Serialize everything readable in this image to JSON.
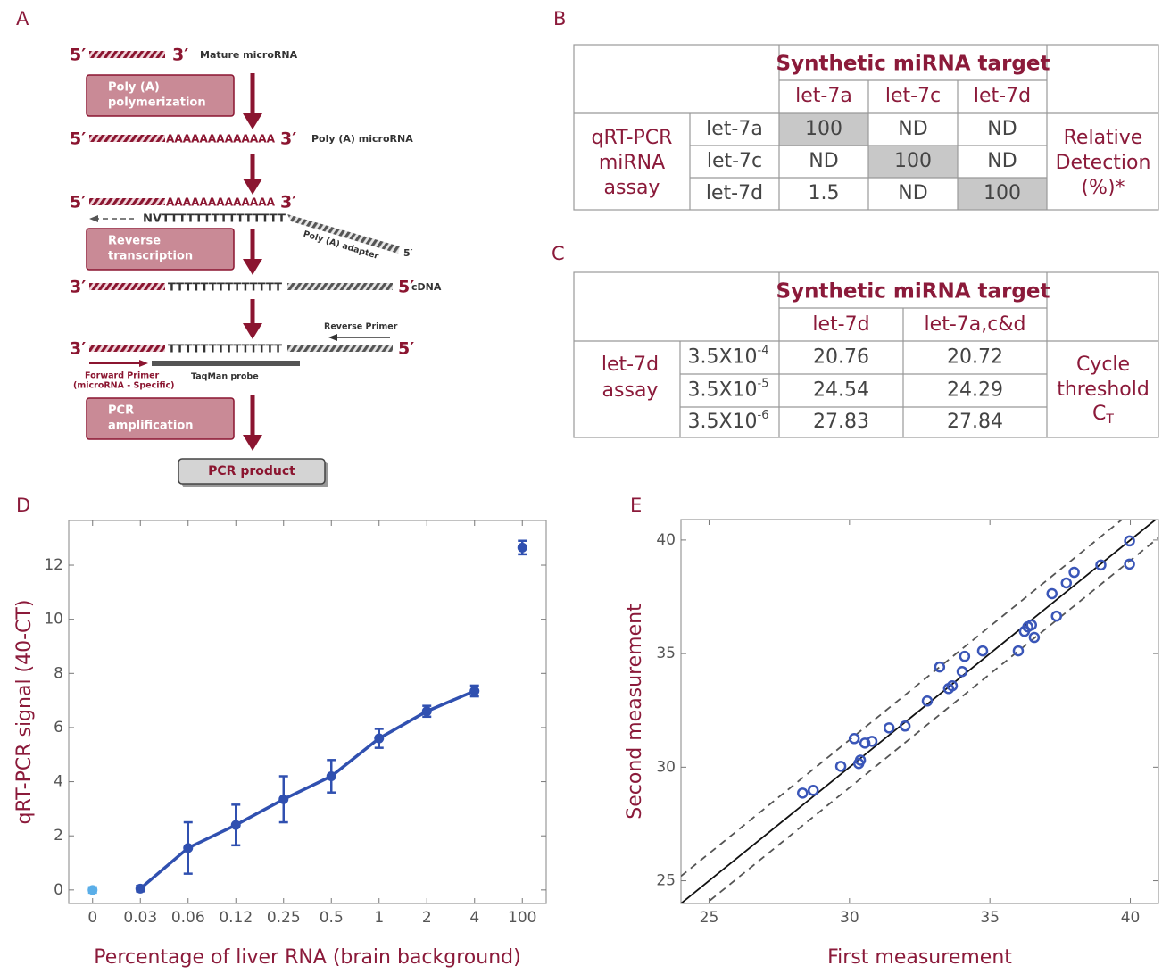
{
  "panel_labels": [
    "A",
    "B",
    "C",
    "D",
    "E"
  ],
  "diagram": {
    "labels": [
      "5′",
      "3′",
      "Mature microRNA",
      "5′",
      "AAAAAAAAAAAAA",
      "3′",
      "Poly (A) microRNA",
      "5′",
      "AAAAAAAAAAAAA",
      "3′",
      "NVTTTTTTTTTTTTTTT",
      "Poly (A) adapter",
      "5′",
      "3′",
      "TTTTTTTTTTTTTT",
      "5′",
      "cDNA",
      "Reverse Primer",
      "3′",
      "TTTTTTTTTTTTTT",
      "5′",
      "Forward Primer",
      "(microRNA - Specific)",
      "TaqMan probe"
    ],
    "boxes": [
      [
        "Poly (A)",
        "polymerization"
      ],
      [
        "Reverse",
        "transcription"
      ],
      [
        "PCR",
        "amplification"
      ]
    ],
    "product": "PCR product"
  },
  "table_b": {
    "header": "Synthetic miRNA target",
    "columns": [
      "let-7a",
      "let-7c",
      "let-7d"
    ],
    "row_group": [
      "qRT-PCR",
      "miRNA",
      "assay"
    ],
    "rows": [
      {
        "label": "let-7a",
        "cells": [
          100,
          "ND",
          "ND"
        ]
      },
      {
        "label": "let-7c",
        "cells": [
          "ND",
          100,
          "ND"
        ]
      },
      {
        "label": "let-7d",
        "cells": [
          1.5,
          "ND",
          100
        ]
      }
    ],
    "highlight": [
      [
        0,
        0
      ],
      [
        1,
        1
      ],
      [
        2,
        2
      ]
    ],
    "side_label": [
      "Relative",
      "Detection",
      "(%)*"
    ]
  },
  "table_c": {
    "header": "Synthetic miRNA target",
    "columns": [
      "let-7d",
      "let-7a,c&d"
    ],
    "row_group": [
      "let-7d",
      "assay"
    ],
    "rows": [
      {
        "label": {
          "base": "3.5X10",
          "exp": "-4"
        },
        "cells": [
          20.76,
          20.72
        ]
      },
      {
        "label": {
          "base": "3.5X10",
          "exp": "-5"
        },
        "cells": [
          24.54,
          24.29
        ]
      },
      {
        "label": {
          "base": "3.5X10",
          "exp": "-6"
        },
        "cells": [
          27.83,
          27.84
        ]
      }
    ],
    "side_label": [
      "Cycle",
      "threshold"
    ],
    "side_symbol": {
      "base": "C",
      "sub": "T"
    }
  },
  "chart_data": [
    {
      "type": "line",
      "xlabel": "Percentage of liver RNA (brain background)",
      "ylabel": "qRT-PCR signal (40-CT)",
      "categories": [
        "0",
        "0.03",
        "0.06",
        "0.12",
        "0.25",
        "0.5",
        "1",
        "2",
        "4",
        "100"
      ],
      "series": [
        {
          "color": "#3050b0",
          "connected": true,
          "values": [
            null,
            0.05,
            1.55,
            2.4,
            3.35,
            4.2,
            5.6,
            6.6,
            7.35,
            null
          ],
          "errors": [
            null,
            0.1,
            0.95,
            0.75,
            0.85,
            0.6,
            0.35,
            0.2,
            0.2,
            null
          ]
        },
        {
          "color": "#5aaee8",
          "connected": false,
          "values": [
            0,
            null,
            null,
            null,
            null,
            null,
            null,
            null,
            null,
            null
          ],
          "errors": [
            0.1,
            null,
            null,
            null,
            null,
            null,
            null,
            null,
            null,
            null
          ]
        },
        {
          "color": "#3050b0",
          "connected": false,
          "values": [
            null,
            null,
            null,
            null,
            null,
            null,
            null,
            null,
            null,
            12.65
          ],
          "errors": [
            null,
            null,
            null,
            null,
            null,
            null,
            null,
            null,
            null,
            0.25
          ]
        }
      ],
      "ylim": [
        -0.5,
        13.65
      ],
      "yticks": [
        0,
        2,
        4,
        6,
        8,
        10,
        12
      ]
    },
    {
      "type": "scatter",
      "xlabel": "First measurement",
      "ylabel": "Second measurement",
      "series": [
        {
          "color": "#3a56b8",
          "x": [
            28.33,
            28.71,
            29.69,
            30.17,
            30.33,
            30.39,
            30.55,
            30.8,
            31.41,
            31.98,
            32.77,
            33.21,
            33.53,
            33.66,
            34.01,
            34.1,
            34.74,
            36.01,
            36.23,
            36.35,
            36.48,
            36.58,
            37.37,
            37.21,
            37.72,
            38.0,
            38.95,
            39.97,
            39.97
          ],
          "values": [
            28.86,
            28.98,
            30.04,
            31.26,
            30.16,
            30.31,
            31.06,
            31.14,
            31.73,
            31.81,
            32.91,
            34.41,
            33.46,
            33.58,
            34.21,
            34.88,
            35.12,
            35.12,
            35.98,
            36.18,
            36.26,
            35.71,
            36.65,
            37.64,
            38.11,
            38.58,
            38.9,
            39.96,
            38.94
          ]
        }
      ],
      "reference_lines": [
        {
          "offset": 0,
          "dashed": false
        },
        {
          "offset": 1.2,
          "dashed": true
        },
        {
          "offset": -0.9,
          "dashed": true
        }
      ],
      "xlim": [
        24,
        41
      ],
      "ylim": [
        24,
        40.9
      ],
      "xticks": [
        25,
        30,
        35,
        40
      ],
      "yticks": [
        25,
        30,
        35,
        40
      ]
    }
  ]
}
